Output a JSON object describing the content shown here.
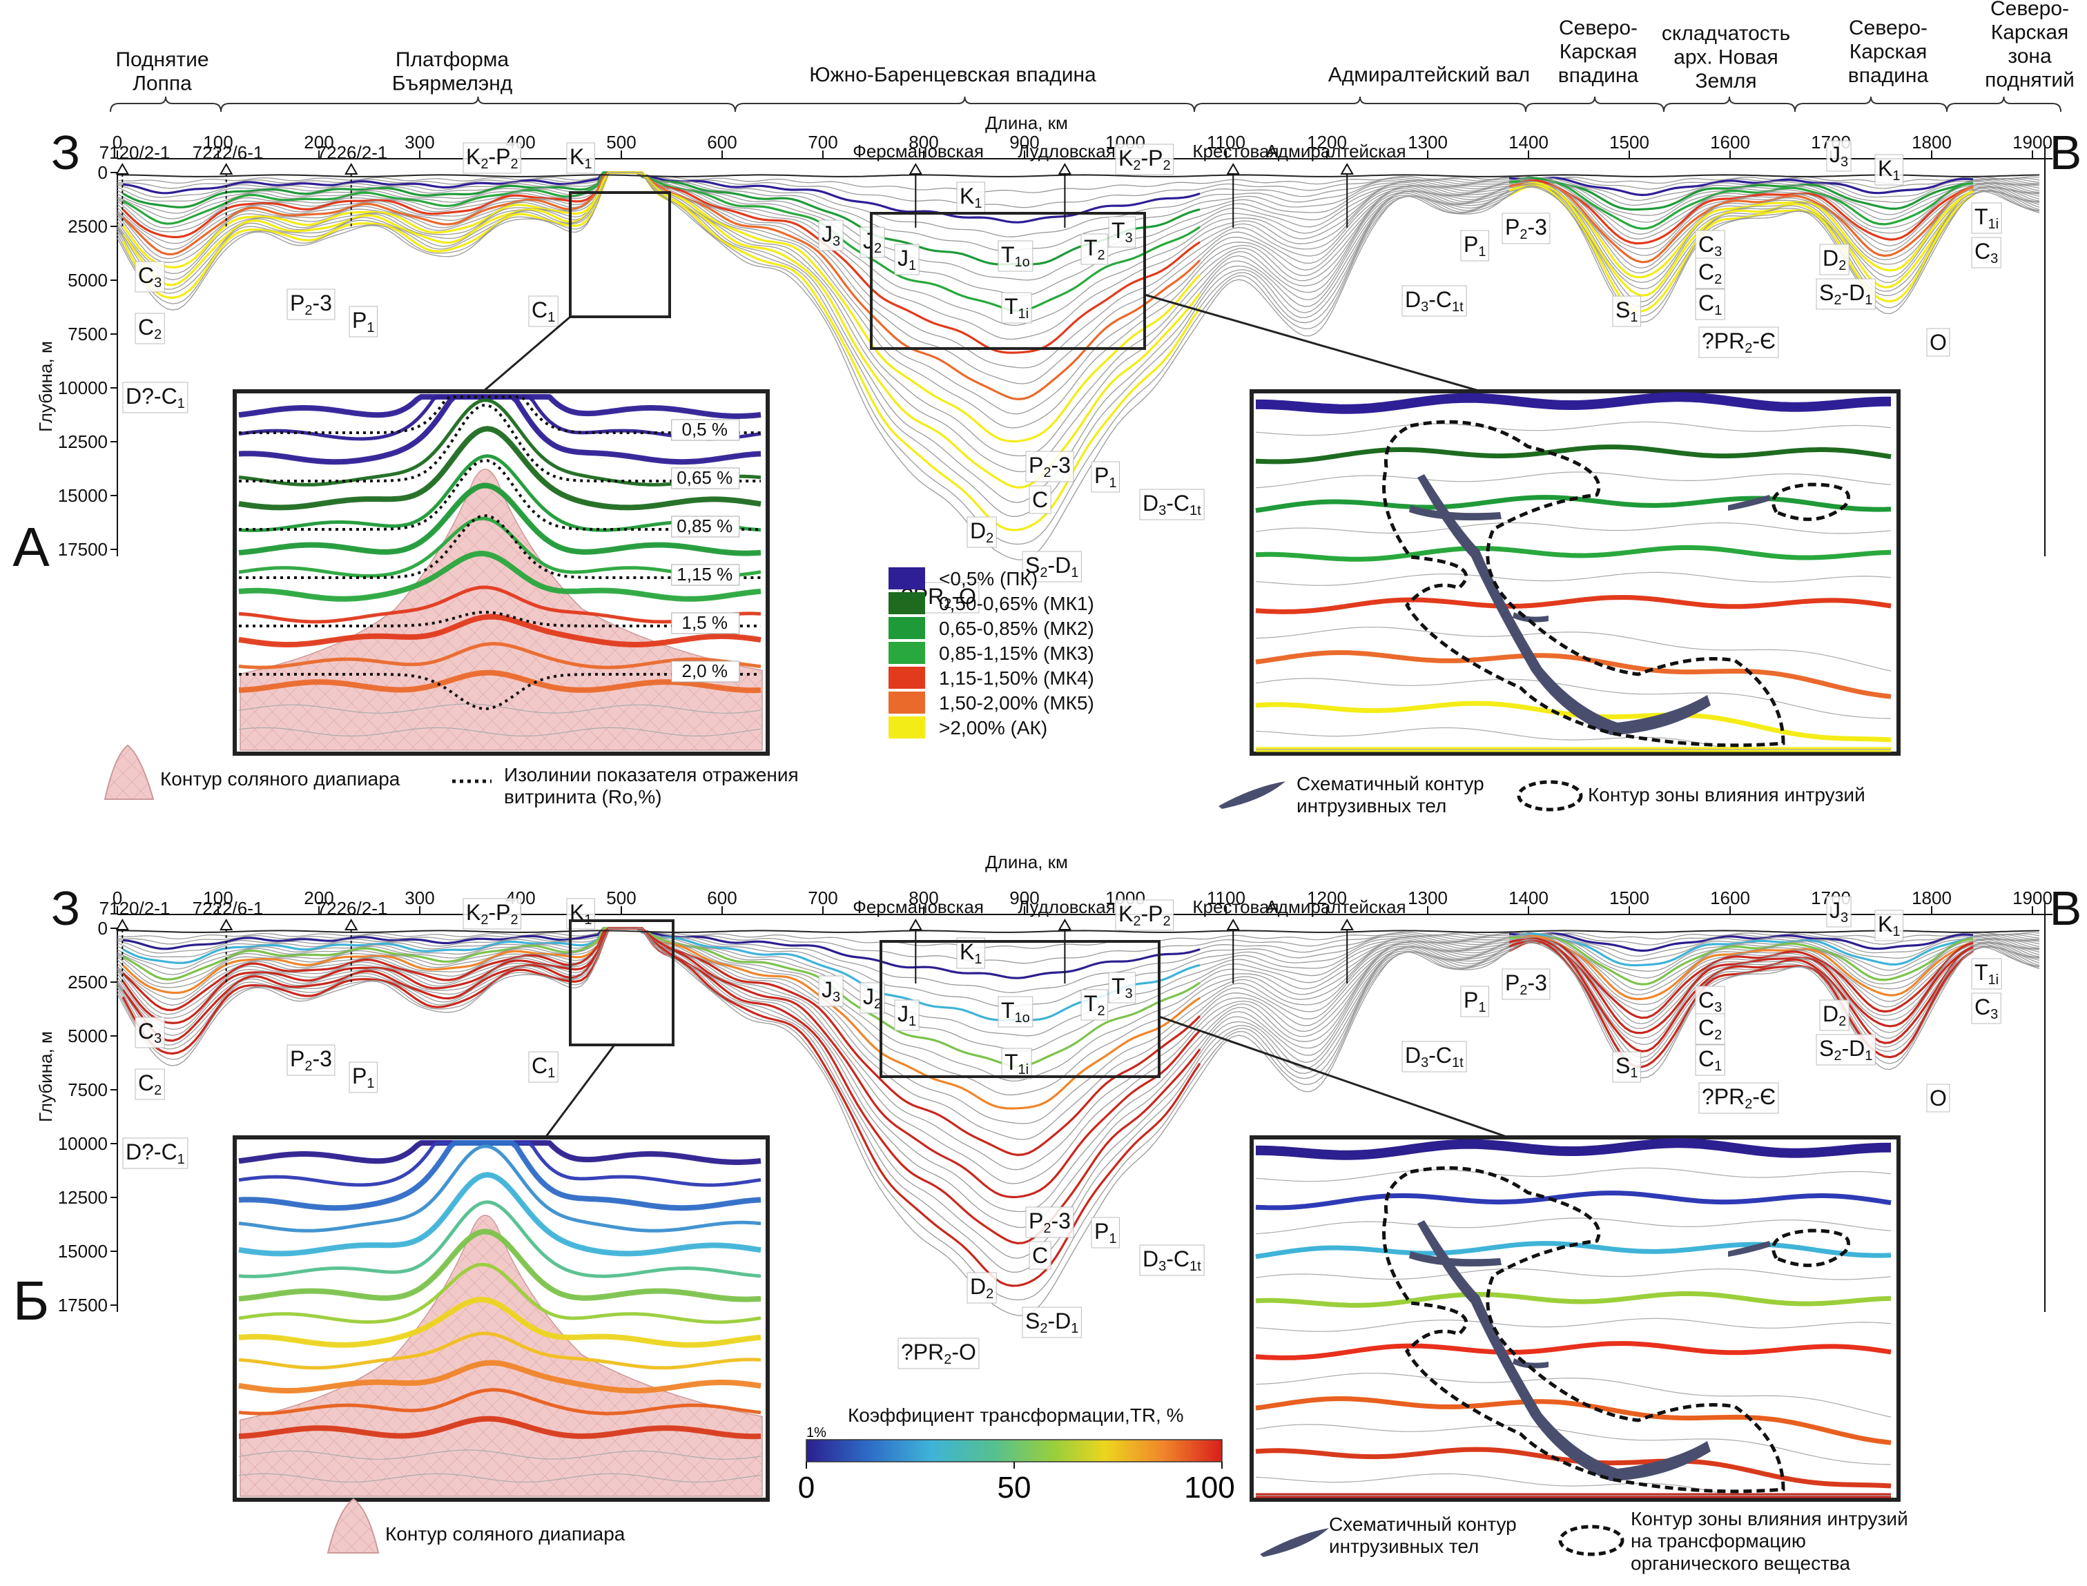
{
  "colors": {
    "pk": "#2e1f96",
    "mk1": "#1e6b20",
    "mk2": "#1f9a38",
    "mk3": "#29a83d",
    "mk4": "#e23a1c",
    "mk5": "#ea6a2c",
    "ak": "#f4ec17",
    "salt": "#f2c9c9",
    "intrusion": "#4a4e6e"
  },
  "sides": {
    "west": "З",
    "east": "В"
  },
  "axis": {
    "length_label": "Длина, км",
    "depth_label": "Глубина, м",
    "km_ticks": [
      "0",
      "100",
      "200",
      "300",
      "400",
      "500",
      "600",
      "700",
      "800",
      "900",
      "1000",
      "1100",
      "1200",
      "1300",
      "1400",
      "1500",
      "1600",
      "1700",
      "1800",
      "1900"
    ],
    "depth_ticks": [
      "0",
      "2500",
      "5000",
      "7500",
      "10000",
      "12500",
      "15000",
      "17500"
    ]
  },
  "regions": [
    {
      "name": "Поднятие\nЛоппа"
    },
    {
      "name": "Платформа\nБъярмелэнд"
    },
    {
      "name": "Южно-Баренцевская впадина"
    },
    {
      "name": "Адмиралтейский вал"
    },
    {
      "name": "Северо-\nКарская\nвпадина"
    },
    {
      "name": "складчатость\nарх. Новая\nЗемля"
    },
    {
      "name": "Северо-\nКарская\nвпадина"
    },
    {
      "name": "Северо-\nКарская\nзона\nподнятий"
    }
  ],
  "wells": [
    "7120/2-1",
    "7222/6-1",
    "7226/2-1",
    "Ферсмановская",
    "Лудловская",
    "Крестовая",
    "Адмиралтейская"
  ],
  "panel_a": {
    "letter": "А",
    "legend": [
      {
        "label": "<0,5% (ПК)",
        "color": "#2e1f96"
      },
      {
        "label": "0,50-0,65% (МК1)",
        "color": "#1e6b20"
      },
      {
        "label": "0,65-0,85% (МК2)",
        "color": "#1f9a38"
      },
      {
        "label": "0,85-1,15% (МК3)",
        "color": "#29a83d"
      },
      {
        "label": "1,15-1,50% (МК4)",
        "color": "#e23a1c"
      },
      {
        "label": "1,50-2,00% (МК5)",
        "color": "#ea6a2c"
      },
      {
        "label": ">2,00% (АК)",
        "color": "#f4ec17"
      }
    ],
    "isolines": [
      "0,5 %",
      "0,65 %",
      "0,85 %",
      "1,15 %",
      "1,5 %",
      "2,0 %"
    ],
    "salt_legend": "Контур соляного диапиара",
    "isoline_legend": "Изолинии показателя отражения\nвитринита (Ro,%)",
    "intrusion_legend": "Схематичный контур\nинтрузивных тел",
    "zone_legend": "Контур зоны влияния интрузий"
  },
  "panel_b": {
    "letter": "Б",
    "tr_title": "Коэффициент трансформации,TR, %",
    "tr_ticks": [
      "0",
      "50",
      "100"
    ],
    "tr_min": "1%",
    "salt_legend": "Контур соляного диапиара",
    "intrusion_legend": "Схематичный контур\nинтрузивных тел",
    "zone_legend": "Контур зоны влияния интрузий\nна трансформацию\nорганического вещества"
  },
  "strata": {
    "k2p2": "K2-P2",
    "k1": "K1",
    "j3": "J3",
    "j2": "J2",
    "j1": "J1",
    "t1o": "T1o",
    "t2": "T2",
    "t3": "T3",
    "t1i": "T1i",
    "p23": "P2-3",
    "p1": "P1",
    "c": "C",
    "c1": "C1",
    "c2": "C2",
    "c3": "C3",
    "d2": "D2",
    "s2d1": "S2-D1",
    "prO": "?PR2-O",
    "d3c1t": "D3-C1t",
    "dc1": "D?-C1",
    "s1": "S1",
    "prE": "?PR2-Є",
    "o": "O"
  }
}
